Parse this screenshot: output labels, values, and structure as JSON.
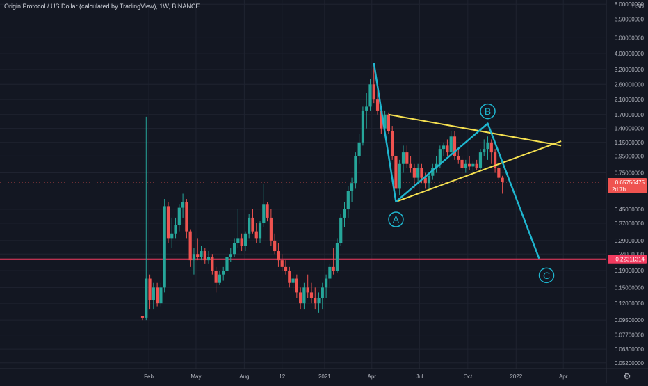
{
  "title": "Origin Protocol / US Dollar (calculated by TradingView), 1W, BINANCE",
  "colors": {
    "background": "#131722",
    "grid": "#1f2330",
    "up": "#26a69a",
    "down": "#ef5350",
    "wave": "#1fb6cf",
    "triangle": "#f5e050",
    "support": "#f23b5f",
    "axis_text": "#b2b5be",
    "price_tag_bg": "#ef5350"
  },
  "chart_data": {
    "type": "candlestick",
    "scale": "log",
    "currency_label": "USD",
    "ylim": [
      0.048,
      8.5
    ],
    "x_range": [
      "2020-01-20",
      "2022-04-18"
    ],
    "x_ticks": [
      {
        "label": "Feb",
        "date": "2020-02-01"
      },
      {
        "label": "May",
        "date": "2020-05-01"
      },
      {
        "label": "Aug",
        "date": "2020-08-01"
      },
      {
        "label": "12",
        "date": "2020-10-12"
      },
      {
        "label": "2021",
        "date": "2021-01-01"
      },
      {
        "label": "Apr",
        "date": "2021-04-01"
      },
      {
        "label": "Jul",
        "date": "2021-07-01"
      },
      {
        "label": "Oct",
        "date": "2021-10-01"
      },
      {
        "label": "2022",
        "date": "2022-01-01"
      },
      {
        "label": "Apr",
        "date": "2022-04-01"
      }
    ],
    "y_ticks": [
      "8.00000000",
      "6.50000000",
      "5.00000000",
      "4.00000000",
      "3.20000000",
      "2.60000000",
      "2.10000000",
      "1.70000000",
      "1.40000000",
      "1.15000000",
      "0.95000000",
      "0.75000000",
      "0.45000000",
      "0.37000000",
      "0.29000000",
      "0.24000000",
      "0.19000000",
      "0.15000000",
      "0.12000000",
      "0.09500000",
      "0.07700000",
      "0.06300000",
      "0.05200000"
    ],
    "current_price": {
      "value": 0.65756475,
      "label": "0.65756475",
      "countdown": "2d 7h"
    },
    "support_level": {
      "value": 0.22311314,
      "label": "0.22311314"
    },
    "candles": [
      {
        "t": "2020-01-20",
        "o": 0.1,
        "h": 0.1,
        "l": 0.095,
        "c": 0.098
      },
      {
        "t": "2020-01-27",
        "o": 0.098,
        "h": 1.65,
        "l": 0.095,
        "c": 0.17
      },
      {
        "t": "2020-02-03",
        "o": 0.17,
        "h": 0.18,
        "l": 0.11,
        "c": 0.125
      },
      {
        "t": "2020-02-10",
        "o": 0.125,
        "h": 0.16,
        "l": 0.11,
        "c": 0.15
      },
      {
        "t": "2020-02-17",
        "o": 0.15,
        "h": 0.16,
        "l": 0.115,
        "c": 0.12
      },
      {
        "t": "2020-02-24",
        "o": 0.12,
        "h": 0.16,
        "l": 0.115,
        "c": 0.15
      },
      {
        "t": "2020-03-02",
        "o": 0.15,
        "h": 0.52,
        "l": 0.14,
        "c": 0.47
      },
      {
        "t": "2020-03-09",
        "o": 0.47,
        "h": 0.5,
        "l": 0.28,
        "c": 0.3
      },
      {
        "t": "2020-03-16",
        "o": 0.3,
        "h": 0.4,
        "l": 0.26,
        "c": 0.32
      },
      {
        "t": "2020-03-23",
        "o": 0.32,
        "h": 0.4,
        "l": 0.3,
        "c": 0.36
      },
      {
        "t": "2020-03-30",
        "o": 0.36,
        "h": 0.48,
        "l": 0.33,
        "c": 0.46
      },
      {
        "t": "2020-04-06",
        "o": 0.46,
        "h": 0.56,
        "l": 0.4,
        "c": 0.5
      },
      {
        "t": "2020-04-13",
        "o": 0.5,
        "h": 0.52,
        "l": 0.3,
        "c": 0.33
      },
      {
        "t": "2020-04-20",
        "o": 0.33,
        "h": 0.34,
        "l": 0.2,
        "c": 0.22
      },
      {
        "t": "2020-04-27",
        "o": 0.22,
        "h": 0.26,
        "l": 0.18,
        "c": 0.24
      },
      {
        "t": "2020-05-04",
        "o": 0.24,
        "h": 0.3,
        "l": 0.22,
        "c": 0.23
      },
      {
        "t": "2020-05-11",
        "o": 0.23,
        "h": 0.27,
        "l": 0.22,
        "c": 0.25
      },
      {
        "t": "2020-05-18",
        "o": 0.25,
        "h": 0.26,
        "l": 0.21,
        "c": 0.22
      },
      {
        "t": "2020-05-25",
        "o": 0.22,
        "h": 0.25,
        "l": 0.21,
        "c": 0.23
      },
      {
        "t": "2020-06-01",
        "o": 0.23,
        "h": 0.24,
        "l": 0.18,
        "c": 0.19
      },
      {
        "t": "2020-06-08",
        "o": 0.19,
        "h": 0.2,
        "l": 0.14,
        "c": 0.16
      },
      {
        "t": "2020-06-15",
        "o": 0.16,
        "h": 0.19,
        "l": 0.155,
        "c": 0.18
      },
      {
        "t": "2020-06-22",
        "o": 0.18,
        "h": 0.2,
        "l": 0.165,
        "c": 0.19
      },
      {
        "t": "2020-06-29",
        "o": 0.19,
        "h": 0.24,
        "l": 0.18,
        "c": 0.23
      },
      {
        "t": "2020-07-06",
        "o": 0.23,
        "h": 0.26,
        "l": 0.215,
        "c": 0.24
      },
      {
        "t": "2020-07-13",
        "o": 0.24,
        "h": 0.3,
        "l": 0.23,
        "c": 0.28
      },
      {
        "t": "2020-07-20",
        "o": 0.28,
        "h": 0.45,
        "l": 0.26,
        "c": 0.3
      },
      {
        "t": "2020-07-27",
        "o": 0.3,
        "h": 0.32,
        "l": 0.25,
        "c": 0.27
      },
      {
        "t": "2020-08-03",
        "o": 0.27,
        "h": 0.33,
        "l": 0.25,
        "c": 0.32
      },
      {
        "t": "2020-08-10",
        "o": 0.32,
        "h": 0.42,
        "l": 0.3,
        "c": 0.4
      },
      {
        "t": "2020-08-17",
        "o": 0.4,
        "h": 0.45,
        "l": 0.32,
        "c": 0.33
      },
      {
        "t": "2020-08-24",
        "o": 0.33,
        "h": 0.37,
        "l": 0.28,
        "c": 0.3
      },
      {
        "t": "2020-08-31",
        "o": 0.3,
        "h": 0.38,
        "l": 0.28,
        "c": 0.37
      },
      {
        "t": "2020-09-07",
        "o": 0.37,
        "h": 0.64,
        "l": 0.35,
        "c": 0.48
      },
      {
        "t": "2020-09-14",
        "o": 0.48,
        "h": 0.5,
        "l": 0.38,
        "c": 0.4
      },
      {
        "t": "2020-09-21",
        "o": 0.4,
        "h": 0.45,
        "l": 0.27,
        "c": 0.29
      },
      {
        "t": "2020-09-28",
        "o": 0.29,
        "h": 0.32,
        "l": 0.24,
        "c": 0.25
      },
      {
        "t": "2020-10-05",
        "o": 0.25,
        "h": 0.28,
        "l": 0.2,
        "c": 0.22
      },
      {
        "t": "2020-10-12",
        "o": 0.22,
        "h": 0.24,
        "l": 0.19,
        "c": 0.2
      },
      {
        "t": "2020-10-19",
        "o": 0.2,
        "h": 0.22,
        "l": 0.18,
        "c": 0.19
      },
      {
        "t": "2020-10-26",
        "o": 0.19,
        "h": 0.2,
        "l": 0.15,
        "c": 0.16
      },
      {
        "t": "2020-11-02",
        "o": 0.16,
        "h": 0.18,
        "l": 0.14,
        "c": 0.17
      },
      {
        "t": "2020-11-09",
        "o": 0.17,
        "h": 0.18,
        "l": 0.13,
        "c": 0.14
      },
      {
        "t": "2020-11-16",
        "o": 0.14,
        "h": 0.15,
        "l": 0.11,
        "c": 0.12
      },
      {
        "t": "2020-11-23",
        "o": 0.12,
        "h": 0.16,
        "l": 0.11,
        "c": 0.15
      },
      {
        "t": "2020-11-30",
        "o": 0.15,
        "h": 0.18,
        "l": 0.13,
        "c": 0.14
      },
      {
        "t": "2020-12-07",
        "o": 0.14,
        "h": 0.16,
        "l": 0.12,
        "c": 0.13
      },
      {
        "t": "2020-12-14",
        "o": 0.13,
        "h": 0.15,
        "l": 0.11,
        "c": 0.12
      },
      {
        "t": "2020-12-21",
        "o": 0.12,
        "h": 0.14,
        "l": 0.105,
        "c": 0.13
      },
      {
        "t": "2020-12-28",
        "o": 0.13,
        "h": 0.16,
        "l": 0.11,
        "c": 0.15
      },
      {
        "t": "2021-01-04",
        "o": 0.15,
        "h": 0.18,
        "l": 0.13,
        "c": 0.17
      },
      {
        "t": "2021-01-11",
        "o": 0.17,
        "h": 0.21,
        "l": 0.15,
        "c": 0.2
      },
      {
        "t": "2021-01-18",
        "o": 0.2,
        "h": 0.26,
        "l": 0.18,
        "c": 0.19
      },
      {
        "t": "2021-01-25",
        "o": 0.19,
        "h": 0.3,
        "l": 0.185,
        "c": 0.28
      },
      {
        "t": "2021-02-01",
        "o": 0.28,
        "h": 0.42,
        "l": 0.27,
        "c": 0.4
      },
      {
        "t": "2021-02-08",
        "o": 0.4,
        "h": 0.5,
        "l": 0.35,
        "c": 0.45
      },
      {
        "t": "2021-02-15",
        "o": 0.45,
        "h": 0.62,
        "l": 0.4,
        "c": 0.58
      },
      {
        "t": "2021-02-22",
        "o": 0.58,
        "h": 0.7,
        "l": 0.5,
        "c": 0.65
      },
      {
        "t": "2021-03-01",
        "o": 0.65,
        "h": 1.0,
        "l": 0.6,
        "c": 0.95
      },
      {
        "t": "2021-03-08",
        "o": 0.95,
        "h": 1.3,
        "l": 0.85,
        "c": 1.15
      },
      {
        "t": "2021-03-15",
        "o": 1.15,
        "h": 1.9,
        "l": 1.1,
        "c": 1.8
      },
      {
        "t": "2021-03-22",
        "o": 1.8,
        "h": 2.3,
        "l": 1.4,
        "c": 1.9
      },
      {
        "t": "2021-03-29",
        "o": 1.9,
        "h": 2.8,
        "l": 1.8,
        "c": 2.6
      },
      {
        "t": "2021-04-05",
        "o": 2.6,
        "h": 3.5,
        "l": 2.0,
        "c": 2.1
      },
      {
        "t": "2021-04-12",
        "o": 2.1,
        "h": 2.4,
        "l": 1.7,
        "c": 1.8
      },
      {
        "t": "2021-04-19",
        "o": 1.8,
        "h": 1.9,
        "l": 1.3,
        "c": 1.4
      },
      {
        "t": "2021-04-26",
        "o": 1.4,
        "h": 1.8,
        "l": 1.35,
        "c": 1.7
      },
      {
        "t": "2021-05-03",
        "o": 1.7,
        "h": 1.75,
        "l": 1.3,
        "c": 1.35
      },
      {
        "t": "2021-05-10",
        "o": 1.35,
        "h": 1.45,
        "l": 0.9,
        "c": 0.95
      },
      {
        "t": "2021-05-17",
        "o": 0.95,
        "h": 1.0,
        "l": 0.5,
        "c": 0.6
      },
      {
        "t": "2021-05-24",
        "o": 0.6,
        "h": 0.9,
        "l": 0.55,
        "c": 0.85
      },
      {
        "t": "2021-05-31",
        "o": 0.85,
        "h": 1.1,
        "l": 0.75,
        "c": 1.0
      },
      {
        "t": "2021-06-07",
        "o": 1.0,
        "h": 1.1,
        "l": 0.8,
        "c": 0.85
      },
      {
        "t": "2021-06-14",
        "o": 0.85,
        "h": 0.95,
        "l": 0.75,
        "c": 0.8
      },
      {
        "t": "2021-06-21",
        "o": 0.8,
        "h": 0.85,
        "l": 0.6,
        "c": 0.7
      },
      {
        "t": "2021-06-28",
        "o": 0.7,
        "h": 0.85,
        "l": 0.65,
        "c": 0.8
      },
      {
        "t": "2021-07-05",
        "o": 0.8,
        "h": 0.85,
        "l": 0.65,
        "c": 0.7
      },
      {
        "t": "2021-07-12",
        "o": 0.7,
        "h": 0.75,
        "l": 0.6,
        "c": 0.65
      },
      {
        "t": "2021-07-19",
        "o": 0.65,
        "h": 0.75,
        "l": 0.6,
        "c": 0.72
      },
      {
        "t": "2021-07-26",
        "o": 0.72,
        "h": 0.85,
        "l": 0.68,
        "c": 0.8
      },
      {
        "t": "2021-08-02",
        "o": 0.8,
        "h": 0.95,
        "l": 0.75,
        "c": 0.85
      },
      {
        "t": "2021-08-09",
        "o": 0.85,
        "h": 1.1,
        "l": 0.8,
        "c": 1.05
      },
      {
        "t": "2021-08-16",
        "o": 1.05,
        "h": 1.15,
        "l": 0.95,
        "c": 1.1
      },
      {
        "t": "2021-08-23",
        "o": 1.1,
        "h": 1.2,
        "l": 0.95,
        "c": 1.0
      },
      {
        "t": "2021-08-30",
        "o": 1.0,
        "h": 1.35,
        "l": 0.98,
        "c": 1.25
      },
      {
        "t": "2021-09-06",
        "o": 1.25,
        "h": 1.35,
        "l": 0.9,
        "c": 0.95
      },
      {
        "t": "2021-09-13",
        "o": 0.95,
        "h": 1.05,
        "l": 0.85,
        "c": 0.9
      },
      {
        "t": "2021-09-20",
        "o": 0.9,
        "h": 0.95,
        "l": 0.7,
        "c": 0.8
      },
      {
        "t": "2021-09-27",
        "o": 0.8,
        "h": 0.9,
        "l": 0.75,
        "c": 0.85
      },
      {
        "t": "2021-10-04",
        "o": 0.85,
        "h": 0.95,
        "l": 0.78,
        "c": 0.82
      },
      {
        "t": "2021-10-11",
        "o": 0.82,
        "h": 0.88,
        "l": 0.76,
        "c": 0.85
      },
      {
        "t": "2021-10-18",
        "o": 0.85,
        "h": 0.9,
        "l": 0.78,
        "c": 0.8
      },
      {
        "t": "2021-10-25",
        "o": 0.8,
        "h": 1.05,
        "l": 0.78,
        "c": 1.0
      },
      {
        "t": "2021-11-01",
        "o": 1.0,
        "h": 1.2,
        "l": 0.95,
        "c": 1.05
      },
      {
        "t": "2021-11-08",
        "o": 1.05,
        "h": 1.25,
        "l": 0.9,
        "c": 1.15
      },
      {
        "t": "2021-11-15",
        "o": 1.15,
        "h": 1.2,
        "l": 0.85,
        "c": 1.0
      },
      {
        "t": "2021-11-22",
        "o": 1.0,
        "h": 1.05,
        "l": 0.75,
        "c": 0.8
      },
      {
        "t": "2021-11-29",
        "o": 0.8,
        "h": 0.82,
        "l": 0.68,
        "c": 0.7
      },
      {
        "t": "2021-12-06",
        "o": 0.7,
        "h": 0.72,
        "l": 0.56,
        "c": 0.658
      }
    ],
    "annotations": {
      "wave_points": [
        {
          "label": "",
          "date": "2021-04-05",
          "price": 3.5
        },
        {
          "label": "A",
          "date": "2021-05-17",
          "price": 0.5
        },
        {
          "label": "B",
          "date": "2021-11-08",
          "price": 1.5
        },
        {
          "label": "C",
          "date": "2022-02-14",
          "price": 0.225
        }
      ],
      "triangle_upper": [
        {
          "date": "2021-05-03",
          "price": 1.7
        },
        {
          "date": "2022-03-28",
          "price": 1.1
        }
      ],
      "triangle_lower": [
        {
          "date": "2021-05-17",
          "price": 0.5
        },
        {
          "date": "2022-03-28",
          "price": 1.17
        }
      ],
      "labels": [
        {
          "text": "A",
          "date": "2021-05-17",
          "price": 0.39
        },
        {
          "text": "B",
          "date": "2021-11-08",
          "price": 1.78
        },
        {
          "text": "C",
          "date": "2022-02-28",
          "price": 0.178
        }
      ]
    }
  }
}
